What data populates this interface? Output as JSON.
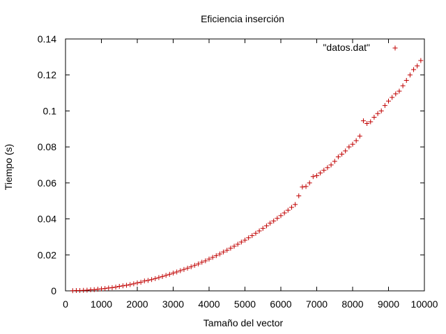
{
  "chart_data": {
    "type": "scatter",
    "title": "Eficiencia inserción",
    "xlabel": "Tamaño del vector",
    "ylabel": "Tiempo (s)",
    "xlim": [
      0,
      10000
    ],
    "ylim": [
      0,
      0.14
    ],
    "x_ticks": [
      "0",
      "1000",
      "2000",
      "3000",
      "4000",
      "5000",
      "6000",
      "7000",
      "8000",
      "9000",
      "10000"
    ],
    "y_ticks": [
      "0",
      "0.02",
      "0.04",
      "0.06",
      "0.08",
      "0.1",
      "0.12",
      "0.14"
    ],
    "grid": false,
    "legend_position": "top-right",
    "marker": "+",
    "series": [
      {
        "name": "\"datos.dat\"",
        "color": "#c00000",
        "x": [
          200,
          300,
          400,
          500,
          600,
          700,
          800,
          900,
          1000,
          1100,
          1200,
          1300,
          1400,
          1500,
          1600,
          1700,
          1800,
          1900,
          2000,
          2100,
          2200,
          2300,
          2400,
          2500,
          2600,
          2700,
          2800,
          2900,
          3000,
          3100,
          3200,
          3300,
          3400,
          3500,
          3600,
          3700,
          3800,
          3900,
          4000,
          4100,
          4200,
          4300,
          4400,
          4500,
          4600,
          4700,
          4800,
          4900,
          5000,
          5100,
          5200,
          5300,
          5400,
          5500,
          5600,
          5700,
          5800,
          5900,
          6000,
          6100,
          6200,
          6300,
          6400,
          6500,
          6600,
          6700,
          6800,
          6900,
          7000,
          7100,
          7200,
          7300,
          7400,
          7500,
          7600,
          7700,
          7800,
          7900,
          8000,
          8100,
          8200,
          8300,
          8400,
          8500,
          8600,
          8700,
          8800,
          8900,
          9000,
          9100,
          9200,
          9300,
          9400,
          9500,
          9600,
          9700,
          9800,
          9900
        ],
        "y": [
          0.0001,
          0.0002,
          0.0002,
          0.0003,
          0.0004,
          0.0006,
          0.0007,
          0.0009,
          0.0011,
          0.0013,
          0.0016,
          0.0018,
          0.0021,
          0.0025,
          0.0028,
          0.0031,
          0.0035,
          0.0039,
          0.0044,
          0.0048,
          0.0055,
          0.0058,
          0.0063,
          0.0068,
          0.0074,
          0.008,
          0.0086,
          0.0092,
          0.0099,
          0.0105,
          0.0112,
          0.0119,
          0.0126,
          0.0134,
          0.0142,
          0.015,
          0.0159,
          0.0167,
          0.0177,
          0.0186,
          0.0196,
          0.0205,
          0.0216,
          0.0226,
          0.0237,
          0.0248,
          0.0259,
          0.0271,
          0.0282,
          0.0295,
          0.0307,
          0.032,
          0.0333,
          0.0347,
          0.0361,
          0.0376,
          0.0388,
          0.0403,
          0.0418,
          0.0433,
          0.0448,
          0.0464,
          0.048,
          0.0528,
          0.0577,
          0.058,
          0.06,
          0.0635,
          0.064,
          0.0655,
          0.067,
          0.0685,
          0.07,
          0.072,
          0.0745,
          0.076,
          0.0778,
          0.08,
          0.0815,
          0.0835,
          0.086,
          0.0945,
          0.093,
          0.094,
          0.0965,
          0.0985,
          0.1,
          0.103,
          0.1055,
          0.1075,
          0.1095,
          0.111,
          0.114,
          0.117,
          0.12,
          0.123,
          0.125,
          0.128
        ]
      }
    ]
  }
}
